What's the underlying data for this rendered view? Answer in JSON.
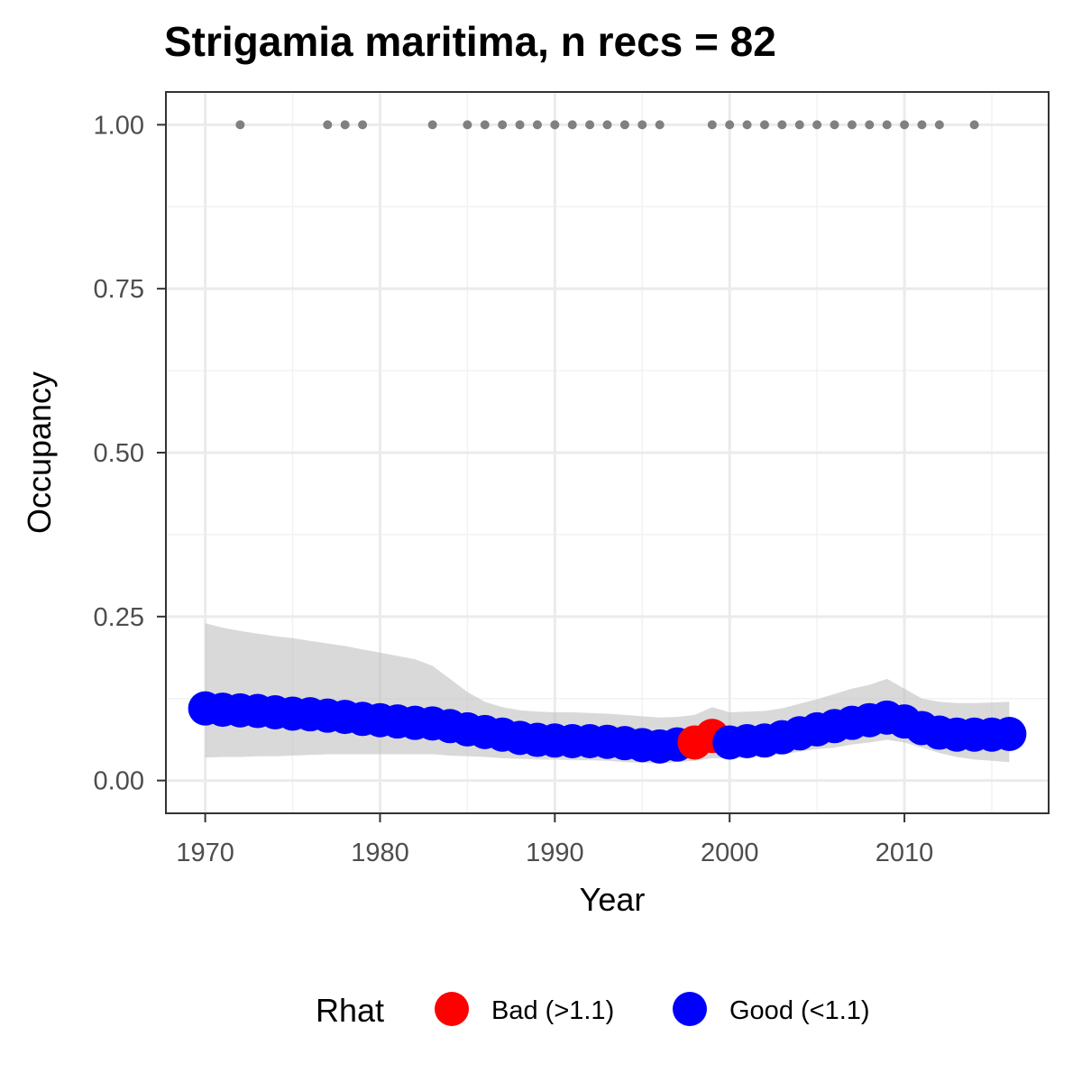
{
  "chart_data": {
    "type": "line",
    "title": "Strigamia maritima, n recs = 82",
    "xlabel": "Year",
    "ylabel": "Occupancy",
    "xlim": [
      1967.75,
      2018.25
    ],
    "ylim": [
      -0.05,
      1.05
    ],
    "xticks": [
      1970,
      1980,
      1990,
      2000,
      2010
    ],
    "xtick_labels": [
      "1970",
      "1980",
      "1990",
      "2000",
      "2010"
    ],
    "yticks": [
      0,
      0.25,
      0.5,
      0.75,
      1
    ],
    "ytick_labels": [
      "0.00",
      "0.25",
      "0.50",
      "0.75",
      "1.00"
    ],
    "grid": true,
    "legend_position": "bottom",
    "legend_title": "Rhat",
    "legend": [
      {
        "label": "Bad (>1.1)",
        "color": "#ff0000"
      },
      {
        "label": "Good (<1.1)",
        "color": "#0000ff"
      }
    ],
    "colors": {
      "bad": "#ff0000",
      "good": "#0000ff",
      "ribbon": "#bfbfbf",
      "records": "#808080"
    },
    "years": [
      1970,
      1971,
      1972,
      1973,
      1974,
      1975,
      1976,
      1977,
      1978,
      1979,
      1980,
      1981,
      1982,
      1983,
      1984,
      1985,
      1986,
      1987,
      1988,
      1989,
      1990,
      1991,
      1992,
      1993,
      1994,
      1995,
      1996,
      1997,
      1998,
      1999,
      2000,
      2001,
      2002,
      2003,
      2004,
      2005,
      2006,
      2007,
      2008,
      2009,
      2010,
      2011,
      2012,
      2013,
      2014,
      2015,
      2016
    ],
    "occupancy": [
      0.11,
      0.108,
      0.107,
      0.106,
      0.104,
      0.102,
      0.101,
      0.099,
      0.097,
      0.094,
      0.092,
      0.09,
      0.088,
      0.087,
      0.083,
      0.078,
      0.074,
      0.07,
      0.065,
      0.062,
      0.061,
      0.06,
      0.06,
      0.059,
      0.057,
      0.054,
      0.052,
      0.055,
      0.058,
      0.068,
      0.058,
      0.06,
      0.061,
      0.066,
      0.072,
      0.078,
      0.083,
      0.088,
      0.092,
      0.096,
      0.09,
      0.08,
      0.073,
      0.07,
      0.07,
      0.07,
      0.071
    ],
    "lower": [
      0.035,
      0.036,
      0.036,
      0.037,
      0.037,
      0.038,
      0.039,
      0.04,
      0.04,
      0.04,
      0.04,
      0.04,
      0.04,
      0.04,
      0.038,
      0.037,
      0.036,
      0.034,
      0.033,
      0.032,
      0.032,
      0.031,
      0.031,
      0.03,
      0.028,
      0.027,
      0.026,
      0.028,
      0.03,
      0.034,
      0.034,
      0.035,
      0.037,
      0.04,
      0.044,
      0.048,
      0.05,
      0.055,
      0.058,
      0.062,
      0.058,
      0.05,
      0.042,
      0.036,
      0.032,
      0.03,
      0.028
    ],
    "upper": [
      0.24,
      0.233,
      0.228,
      0.224,
      0.22,
      0.217,
      0.213,
      0.209,
      0.205,
      0.2,
      0.195,
      0.19,
      0.185,
      0.175,
      0.155,
      0.135,
      0.12,
      0.112,
      0.107,
      0.105,
      0.104,
      0.104,
      0.103,
      0.102,
      0.1,
      0.098,
      0.096,
      0.097,
      0.1,
      0.112,
      0.104,
      0.105,
      0.106,
      0.11,
      0.117,
      0.124,
      0.132,
      0.14,
      0.146,
      0.155,
      0.14,
      0.125,
      0.12,
      0.118,
      0.118,
      0.119,
      0.12
    ],
    "rhat_status": [
      "good",
      "good",
      "good",
      "good",
      "good",
      "good",
      "good",
      "good",
      "good",
      "good",
      "good",
      "good",
      "good",
      "good",
      "good",
      "good",
      "good",
      "good",
      "good",
      "good",
      "good",
      "good",
      "good",
      "good",
      "good",
      "good",
      "good",
      "good",
      "bad",
      "bad",
      "good",
      "good",
      "good",
      "good",
      "good",
      "good",
      "good",
      "good",
      "good",
      "good",
      "good",
      "good",
      "good",
      "good",
      "good",
      "good",
      "good"
    ],
    "record_years": [
      1972,
      1977,
      1978,
      1979,
      1983,
      1985,
      1986,
      1987,
      1988,
      1989,
      1990,
      1991,
      1992,
      1993,
      1994,
      1995,
      1996,
      1999,
      2000,
      2001,
      2002,
      2003,
      2004,
      2005,
      2006,
      2007,
      2008,
      2009,
      2010,
      2011,
      2012,
      2014
    ],
    "record_value": 1
  }
}
